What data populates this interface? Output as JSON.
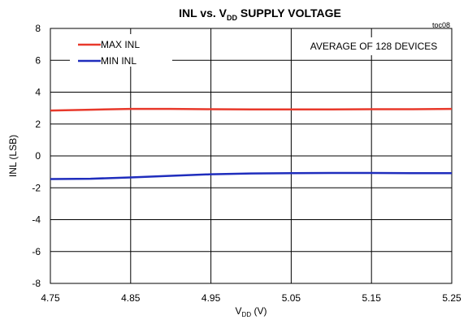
{
  "chart_data": {
    "type": "line",
    "title_main": "INL vs. V",
    "title_sub": "DD",
    "title_tail": " SUPPLY VOLTAGE",
    "figure_code": "toc08",
    "note": "AVERAGE OF 128 DEVICES",
    "xlabel_main": "V",
    "xlabel_sub": "DD",
    "xlabel_tail": " (V)",
    "ylabel": "INL (LSB)",
    "xlim": [
      4.75,
      5.25
    ],
    "ylim": [
      -8,
      8
    ],
    "x_ticks": [
      "4.75",
      "4.85",
      "4.95",
      "5.05",
      "5.15",
      "5.25"
    ],
    "y_ticks": [
      "8",
      "6",
      "4",
      "2",
      "0",
      "-2",
      "-4",
      "-6",
      "-8"
    ],
    "grid": true,
    "legend_position": "top-left",
    "series": [
      {
        "name": "MAX INL",
        "color": "#e8392b",
        "x": [
          4.75,
          4.8,
          4.85,
          4.9,
          4.95,
          5.0,
          5.05,
          5.1,
          5.15,
          5.2,
          5.25
        ],
        "y": [
          2.85,
          2.9,
          2.95,
          2.95,
          2.93,
          2.92,
          2.92,
          2.92,
          2.93,
          2.93,
          2.95
        ]
      },
      {
        "name": "MIN INL",
        "color": "#1f2dbd",
        "x": [
          4.75,
          4.8,
          4.85,
          4.9,
          4.95,
          5.0,
          5.05,
          5.1,
          5.15,
          5.2,
          5.25
        ],
        "y": [
          -1.45,
          -1.43,
          -1.35,
          -1.25,
          -1.15,
          -1.1,
          -1.08,
          -1.07,
          -1.07,
          -1.08,
          -1.08
        ]
      }
    ]
  }
}
